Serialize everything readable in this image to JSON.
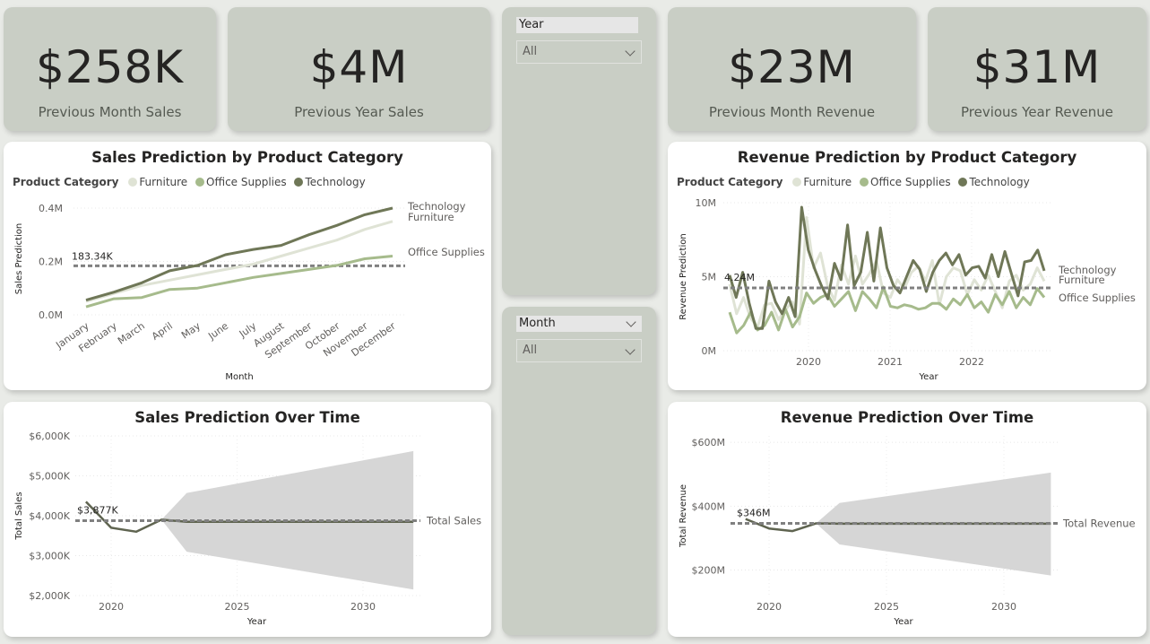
{
  "kpis": [
    {
      "value": "$258K",
      "label": "Previous Month Sales"
    },
    {
      "value": "$4M",
      "label": "Previous Year Sales"
    },
    {
      "value": "$23M",
      "label": "Previous Month Revenue"
    },
    {
      "value": "$31M",
      "label": "Previous Year Revenue"
    }
  ],
  "slicers": {
    "year": {
      "title": "Year",
      "value": "All"
    },
    "month": {
      "title": "Month",
      "value": "All"
    }
  },
  "colors": {
    "furniture": "#dfe3d5",
    "office_supplies": "#a6bb8c",
    "technology": "#6f7757",
    "reference_line": "#808080",
    "band": "#d6d6d6",
    "kpi_bg": "#c9cec5"
  },
  "chart_data": [
    {
      "type": "line",
      "title": "Sales Prediction by Product Category",
      "legend_title": "Product Category",
      "legend_position": "top-left",
      "xlabel": "Month",
      "ylabel": "Sales Prediction",
      "categories": [
        "January",
        "February",
        "March",
        "April",
        "May",
        "June",
        "July",
        "August",
        "September",
        "October",
        "November",
        "December"
      ],
      "yticks": [
        "0.0M",
        "0.2M",
        "0.4M"
      ],
      "ylim": [
        0,
        0.42
      ],
      "reference_line": {
        "value": 0.18334,
        "label": "183.34K"
      },
      "series": [
        {
          "name": "Furniture",
          "values": [
            0.05,
            0.08,
            0.11,
            0.13,
            0.15,
            0.17,
            0.19,
            0.22,
            0.25,
            0.28,
            0.32,
            0.35
          ]
        },
        {
          "name": "Office Supplies",
          "values": [
            0.03,
            0.06,
            0.065,
            0.095,
            0.1,
            0.12,
            0.14,
            0.155,
            0.17,
            0.185,
            0.21,
            0.22
          ]
        },
        {
          "name": "Technology",
          "values": [
            0.055,
            0.085,
            0.12,
            0.165,
            0.185,
            0.225,
            0.245,
            0.26,
            0.3,
            0.335,
            0.375,
            0.4
          ]
        }
      ],
      "end_labels": [
        "Technology",
        "Furniture",
        "Office Supplies"
      ]
    },
    {
      "type": "line",
      "title": "Revenue Prediction by Product Category",
      "legend_title": "Product Category",
      "legend_position": "top-left",
      "xlabel": "Year",
      "ylabel": "Revenue Prediction",
      "yticks": [
        "0M",
        "5M",
        "10M"
      ],
      "xticks": [
        "2020",
        "2021",
        "2022"
      ],
      "ylim": [
        0,
        10
      ],
      "reference_line": {
        "value": 4.24,
        "label": "4.24M"
      },
      "series": [
        {
          "name": "Furniture",
          "values": [
            4.5,
            2.5,
            3.6,
            2.2,
            1.6,
            3.1,
            3.2,
            2.1,
            2.8,
            3.3,
            1.8,
            9.0,
            5.6,
            6.6,
            4.4,
            3.4,
            5.8,
            4.5,
            6.4,
            4.5,
            5.2,
            6.1,
            3.9,
            3.6,
            4.8,
            4.2,
            5.3,
            5.7,
            4.7,
            6.1,
            3.1,
            5.0,
            5.6,
            5.4,
            3.8,
            4.8,
            4.1,
            5.1,
            4.0,
            2.9,
            4.7,
            5.1,
            4.1,
            4.5,
            5.6,
            4.7
          ]
        },
        {
          "name": "Office Supplies",
          "values": [
            2.6,
            1.2,
            1.7,
            2.6,
            1.4,
            1.7,
            2.6,
            1.4,
            2.8,
            1.6,
            2.3,
            3.9,
            3.2,
            3.6,
            3.8,
            3.0,
            3.5,
            4.0,
            2.7,
            4.0,
            3.5,
            2.9,
            4.3,
            3.0,
            2.9,
            3.1,
            3.0,
            2.8,
            2.9,
            3.2,
            3.2,
            2.8,
            3.5,
            3.1,
            3.8,
            2.9,
            3.3,
            2.6,
            3.8,
            3.1,
            4.0,
            2.9,
            3.6,
            3.1,
            4.2,
            3.6
          ]
        },
        {
          "name": "Technology",
          "values": [
            5.1,
            3.6,
            5.3,
            3.2,
            1.5,
            1.5,
            4.7,
            3.3,
            2.5,
            3.6,
            2.3,
            9.7,
            6.8,
            5.5,
            4.4,
            3.5,
            5.9,
            4.8,
            8.5,
            4.4,
            5.3,
            8.0,
            4.7,
            8.3,
            5.6,
            4.4,
            3.9,
            5.0,
            6.1,
            5.5,
            4.0,
            5.3,
            6.1,
            6.6,
            5.8,
            6.5,
            5.1,
            5.6,
            5.7,
            4.9,
            6.5,
            5.0,
            6.7,
            5.2,
            3.7,
            6.0,
            6.1,
            6.8,
            5.4
          ]
        }
      ],
      "end_labels": [
        "Technology",
        "Furniture",
        "Office Supplies"
      ]
    },
    {
      "type": "line",
      "title": "Sales Prediction Over Time",
      "xlabel": "Year",
      "ylabel": "Total Sales",
      "yticks": [
        "$2,000K",
        "$3,000K",
        "$4,000K",
        "$5,000K",
        "$6,000K"
      ],
      "xticks": [
        "2020",
        "2025",
        "2030"
      ],
      "ylim": [
        2000,
        6000
      ],
      "xlim": [
        2018,
        2033
      ],
      "reference_line": {
        "value": 3877,
        "label": "$3,877K"
      },
      "series": [
        {
          "name": "Total Sales",
          "x": [
            2019,
            2020,
            2021,
            2022,
            2023,
            2032
          ],
          "values": [
            4350,
            3700,
            3600,
            3900,
            3850,
            3850
          ]
        }
      ],
      "forecast_band": {
        "x": [
          2022,
          2023,
          2032
        ],
        "upper": [
          3900,
          4570,
          5620
        ],
        "lower": [
          3900,
          3100,
          2150
        ]
      }
    },
    {
      "type": "line",
      "title": "Revenue Prediction Over Time",
      "xlabel": "Year",
      "ylabel": "Total Revenue",
      "yticks": [
        "$200M",
        "$400M",
        "$600M"
      ],
      "xticks": [
        "2020",
        "2025",
        "2030"
      ],
      "ylim": [
        120,
        620
      ],
      "xlim": [
        2018,
        2033
      ],
      "reference_line": {
        "value": 346,
        "label": "$346M"
      },
      "series": [
        {
          "name": "Total Revenue",
          "x": [
            2019,
            2020,
            2021,
            2022,
            2023,
            2032
          ],
          "values": [
            360,
            330,
            322,
            346,
            345,
            345
          ]
        }
      ],
      "forecast_band": {
        "x": [
          2022,
          2023,
          2032
        ],
        "upper": [
          346,
          410,
          505
        ],
        "lower": [
          346,
          280,
          183
        ]
      }
    }
  ]
}
